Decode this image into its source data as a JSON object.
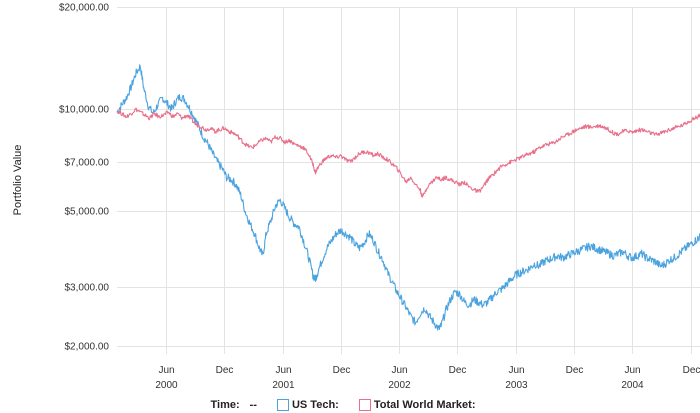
{
  "chart_data": {
    "type": "line",
    "ylabel": "Portfolio Value",
    "yscale": "log",
    "ylim": [
      1900,
      20000
    ],
    "y_ticks": [
      {
        "value": 20000,
        "label": "$20,000.00"
      },
      {
        "value": 10000,
        "label": "$10,000.00"
      },
      {
        "value": 7000,
        "label": "$7,000.00"
      },
      {
        "value": 5000,
        "label": "$5,000.00"
      },
      {
        "value": 3000,
        "label": "$3,000.00"
      },
      {
        "value": 2000,
        "label": "$2,000.00"
      }
    ],
    "x_range": [
      2000.0,
      2005.0
    ],
    "x_ticks": [
      {
        "value": 2000.42,
        "label": "Jun"
      },
      {
        "value": 2000.92,
        "label": "Dec"
      },
      {
        "value": 2001.42,
        "label": "Jun"
      },
      {
        "value": 2001.92,
        "label": "Dec"
      },
      {
        "value": 2002.42,
        "label": "Jun"
      },
      {
        "value": 2002.92,
        "label": "Dec"
      },
      {
        "value": 2003.42,
        "label": "Jun"
      },
      {
        "value": 2003.92,
        "label": "Dec"
      },
      {
        "value": 2004.42,
        "label": "Jun"
      },
      {
        "value": 2004.92,
        "label": "Dec"
      }
    ],
    "year_labels": [
      {
        "value": 2000.42,
        "label": "2000"
      },
      {
        "value": 2001.42,
        "label": "2001"
      },
      {
        "value": 2002.42,
        "label": "2002"
      },
      {
        "value": 2003.42,
        "label": "2003"
      },
      {
        "value": 2004.42,
        "label": "2004"
      }
    ],
    "series": [
      {
        "name": "US Tech:",
        "color": "#4aa3df",
        "points": [
          [
            2000.0,
            9800
          ],
          [
            2000.04,
            10300
          ],
          [
            2000.08,
            10800
          ],
          [
            2000.12,
            11600
          ],
          [
            2000.16,
            12700
          ],
          [
            2000.2,
            13400
          ],
          [
            2000.23,
            11500
          ],
          [
            2000.27,
            10200
          ],
          [
            2000.31,
            9700
          ],
          [
            2000.35,
            10300
          ],
          [
            2000.39,
            10800
          ],
          [
            2000.43,
            10400
          ],
          [
            2000.47,
            10000
          ],
          [
            2000.5,
            10500
          ],
          [
            2000.54,
            10900
          ],
          [
            2000.58,
            10700
          ],
          [
            2000.62,
            10100
          ],
          [
            2000.66,
            9500
          ],
          [
            2000.7,
            8900
          ],
          [
            2000.74,
            8300
          ],
          [
            2000.78,
            7900
          ],
          [
            2000.82,
            7400
          ],
          [
            2000.86,
            7000
          ],
          [
            2000.9,
            6700
          ],
          [
            2000.94,
            6300
          ],
          [
            2000.98,
            6200
          ],
          [
            2001.02,
            6000
          ],
          [
            2001.06,
            5600
          ],
          [
            2001.1,
            5000
          ],
          [
            2001.14,
            4600
          ],
          [
            2001.18,
            4300
          ],
          [
            2001.22,
            3900
          ],
          [
            2001.25,
            3700
          ],
          [
            2001.28,
            4300
          ],
          [
            2001.32,
            4700
          ],
          [
            2001.36,
            5200
          ],
          [
            2001.4,
            5400
          ],
          [
            2001.44,
            5100
          ],
          [
            2001.48,
            4800
          ],
          [
            2001.52,
            4600
          ],
          [
            2001.56,
            4500
          ],
          [
            2001.6,
            4100
          ],
          [
            2001.64,
            3700
          ],
          [
            2001.68,
            3250
          ],
          [
            2001.7,
            3150
          ],
          [
            2001.72,
            3300
          ],
          [
            2001.76,
            3600
          ],
          [
            2001.8,
            3900
          ],
          [
            2001.84,
            4100
          ],
          [
            2001.88,
            4300
          ],
          [
            2001.92,
            4400
          ],
          [
            2001.96,
            4300
          ],
          [
            2002.0,
            4200
          ],
          [
            2002.04,
            4000
          ],
          [
            2002.08,
            3900
          ],
          [
            2002.12,
            4050
          ],
          [
            2002.16,
            4300
          ],
          [
            2002.2,
            4100
          ],
          [
            2002.24,
            3800
          ],
          [
            2002.28,
            3600
          ],
          [
            2002.32,
            3300
          ],
          [
            2002.36,
            3100
          ],
          [
            2002.4,
            2900
          ],
          [
            2002.44,
            2750
          ],
          [
            2002.48,
            2600
          ],
          [
            2002.52,
            2450
          ],
          [
            2002.56,
            2350
          ],
          [
            2002.6,
            2500
          ],
          [
            2002.64,
            2600
          ],
          [
            2002.68,
            2450
          ],
          [
            2002.72,
            2350
          ],
          [
            2002.76,
            2250
          ],
          [
            2002.78,
            2300
          ],
          [
            2002.82,
            2550
          ],
          [
            2002.86,
            2750
          ],
          [
            2002.9,
            2900
          ],
          [
            2002.94,
            2850
          ],
          [
            2002.98,
            2700
          ],
          [
            2003.02,
            2650
          ],
          [
            2003.06,
            2750
          ],
          [
            2003.1,
            2700
          ],
          [
            2003.14,
            2650
          ],
          [
            2003.18,
            2700
          ],
          [
            2003.22,
            2800
          ],
          [
            2003.26,
            2900
          ],
          [
            2003.3,
            2950
          ],
          [
            2003.34,
            3050
          ],
          [
            2003.38,
            3150
          ],
          [
            2003.42,
            3250
          ],
          [
            2003.46,
            3300
          ],
          [
            2003.5,
            3350
          ],
          [
            2003.54,
            3400
          ],
          [
            2003.58,
            3500
          ],
          [
            2003.62,
            3450
          ],
          [
            2003.66,
            3550
          ],
          [
            2003.7,
            3600
          ],
          [
            2003.74,
            3650
          ],
          [
            2003.78,
            3700
          ],
          [
            2003.82,
            3650
          ],
          [
            2003.86,
            3700
          ],
          [
            2003.9,
            3750
          ],
          [
            2003.94,
            3800
          ],
          [
            2003.98,
            3850
          ],
          [
            2004.02,
            3900
          ],
          [
            2004.06,
            3950
          ],
          [
            2004.1,
            3900
          ],
          [
            2004.14,
            3850
          ],
          [
            2004.18,
            3800
          ],
          [
            2004.22,
            3750
          ],
          [
            2004.26,
            3700
          ],
          [
            2004.3,
            3750
          ],
          [
            2004.34,
            3800
          ],
          [
            2004.38,
            3700
          ],
          [
            2004.42,
            3650
          ],
          [
            2004.46,
            3700
          ],
          [
            2004.5,
            3750
          ],
          [
            2004.54,
            3650
          ],
          [
            2004.58,
            3600
          ],
          [
            2004.62,
            3550
          ],
          [
            2004.66,
            3450
          ],
          [
            2004.7,
            3500
          ],
          [
            2004.74,
            3600
          ],
          [
            2004.78,
            3650
          ],
          [
            2004.82,
            3750
          ],
          [
            2004.86,
            3850
          ],
          [
            2004.9,
            3950
          ],
          [
            2004.94,
            4050
          ],
          [
            2004.98,
            4150
          ],
          [
            2005.0,
            4200
          ]
        ]
      },
      {
        "name": "Total World Market:",
        "color": "#e8708a",
        "points": [
          [
            2000.0,
            9900
          ],
          [
            2000.04,
            9700
          ],
          [
            2000.08,
            9500
          ],
          [
            2000.12,
            9700
          ],
          [
            2000.16,
            10000
          ],
          [
            2000.2,
            9800
          ],
          [
            2000.24,
            9600
          ],
          [
            2000.28,
            9400
          ],
          [
            2000.32,
            9700
          ],
          [
            2000.36,
            9500
          ],
          [
            2000.4,
            9600
          ],
          [
            2000.44,
            9800
          ],
          [
            2000.48,
            9500
          ],
          [
            2000.52,
            9700
          ],
          [
            2000.56,
            9400
          ],
          [
            2000.6,
            9600
          ],
          [
            2000.64,
            9300
          ],
          [
            2000.68,
            9000
          ],
          [
            2000.72,
            8900
          ],
          [
            2000.76,
            8700
          ],
          [
            2000.8,
            8800
          ],
          [
            2000.84,
            8600
          ],
          [
            2000.88,
            8700
          ],
          [
            2000.92,
            8800
          ],
          [
            2000.96,
            8600
          ],
          [
            2001.0,
            8500
          ],
          [
            2001.04,
            8300
          ],
          [
            2001.08,
            8000
          ],
          [
            2001.12,
            7800
          ],
          [
            2001.16,
            7700
          ],
          [
            2001.2,
            7900
          ],
          [
            2001.24,
            8100
          ],
          [
            2001.28,
            8200
          ],
          [
            2001.32,
            8000
          ],
          [
            2001.36,
            8300
          ],
          [
            2001.4,
            8200
          ],
          [
            2001.44,
            8000
          ],
          [
            2001.48,
            8100
          ],
          [
            2001.52,
            7900
          ],
          [
            2001.56,
            7800
          ],
          [
            2001.6,
            7700
          ],
          [
            2001.64,
            7400
          ],
          [
            2001.68,
            6900
          ],
          [
            2001.7,
            6500
          ],
          [
            2001.72,
            6700
          ],
          [
            2001.76,
            7000
          ],
          [
            2001.8,
            7200
          ],
          [
            2001.84,
            7300
          ],
          [
            2001.88,
            7200
          ],
          [
            2001.92,
            7300
          ],
          [
            2001.96,
            7100
          ],
          [
            2002.0,
            7000
          ],
          [
            2002.04,
            7200
          ],
          [
            2002.08,
            7400
          ],
          [
            2002.12,
            7500
          ],
          [
            2002.16,
            7450
          ],
          [
            2002.2,
            7300
          ],
          [
            2002.24,
            7400
          ],
          [
            2002.28,
            7200
          ],
          [
            2002.32,
            7100
          ],
          [
            2002.36,
            6900
          ],
          [
            2002.4,
            6700
          ],
          [
            2002.44,
            6400
          ],
          [
            2002.48,
            6100
          ],
          [
            2002.52,
            6300
          ],
          [
            2002.56,
            6000
          ],
          [
            2002.6,
            5800
          ],
          [
            2002.62,
            5500
          ],
          [
            2002.66,
            5900
          ],
          [
            2002.7,
            6100
          ],
          [
            2002.74,
            6300
          ],
          [
            2002.78,
            6200
          ],
          [
            2002.82,
            6300
          ],
          [
            2002.86,
            6200
          ],
          [
            2002.9,
            6100
          ],
          [
            2002.94,
            6000
          ],
          [
            2002.98,
            6100
          ],
          [
            2003.02,
            5900
          ],
          [
            2003.06,
            5800
          ],
          [
            2003.1,
            5700
          ],
          [
            2003.14,
            5900
          ],
          [
            2003.18,
            6200
          ],
          [
            2003.22,
            6400
          ],
          [
            2003.26,
            6600
          ],
          [
            2003.3,
            6800
          ],
          [
            2003.34,
            6900
          ],
          [
            2003.38,
            7000
          ],
          [
            2003.42,
            7100
          ],
          [
            2003.46,
            7200
          ],
          [
            2003.5,
            7300
          ],
          [
            2003.54,
            7400
          ],
          [
            2003.58,
            7500
          ],
          [
            2003.62,
            7700
          ],
          [
            2003.66,
            7800
          ],
          [
            2003.7,
            7900
          ],
          [
            2003.74,
            7950
          ],
          [
            2003.78,
            8100
          ],
          [
            2003.82,
            8300
          ],
          [
            2003.86,
            8400
          ],
          [
            2003.9,
            8550
          ],
          [
            2003.94,
            8700
          ],
          [
            2003.98,
            8800
          ],
          [
            2004.02,
            8900
          ],
          [
            2004.06,
            8850
          ],
          [
            2004.1,
            8900
          ],
          [
            2004.14,
            8950
          ],
          [
            2004.18,
            8850
          ],
          [
            2004.22,
            8700
          ],
          [
            2004.26,
            8500
          ],
          [
            2004.3,
            8450
          ],
          [
            2004.34,
            8600
          ],
          [
            2004.38,
            8650
          ],
          [
            2004.42,
            8550
          ],
          [
            2004.46,
            8650
          ],
          [
            2004.5,
            8700
          ],
          [
            2004.54,
            8600
          ],
          [
            2004.58,
            8500
          ],
          [
            2004.62,
            8400
          ],
          [
            2004.66,
            8500
          ],
          [
            2004.7,
            8600
          ],
          [
            2004.74,
            8700
          ],
          [
            2004.78,
            8800
          ],
          [
            2004.82,
            8900
          ],
          [
            2004.86,
            9000
          ],
          [
            2004.9,
            9200
          ],
          [
            2004.94,
            9350
          ],
          [
            2004.98,
            9500
          ],
          [
            2005.0,
            9650
          ]
        ]
      }
    ]
  },
  "legend": {
    "time_label": "Time:",
    "time_value": "--",
    "us_tech_label": "US Tech:",
    "world_label": "Total World Market:"
  }
}
